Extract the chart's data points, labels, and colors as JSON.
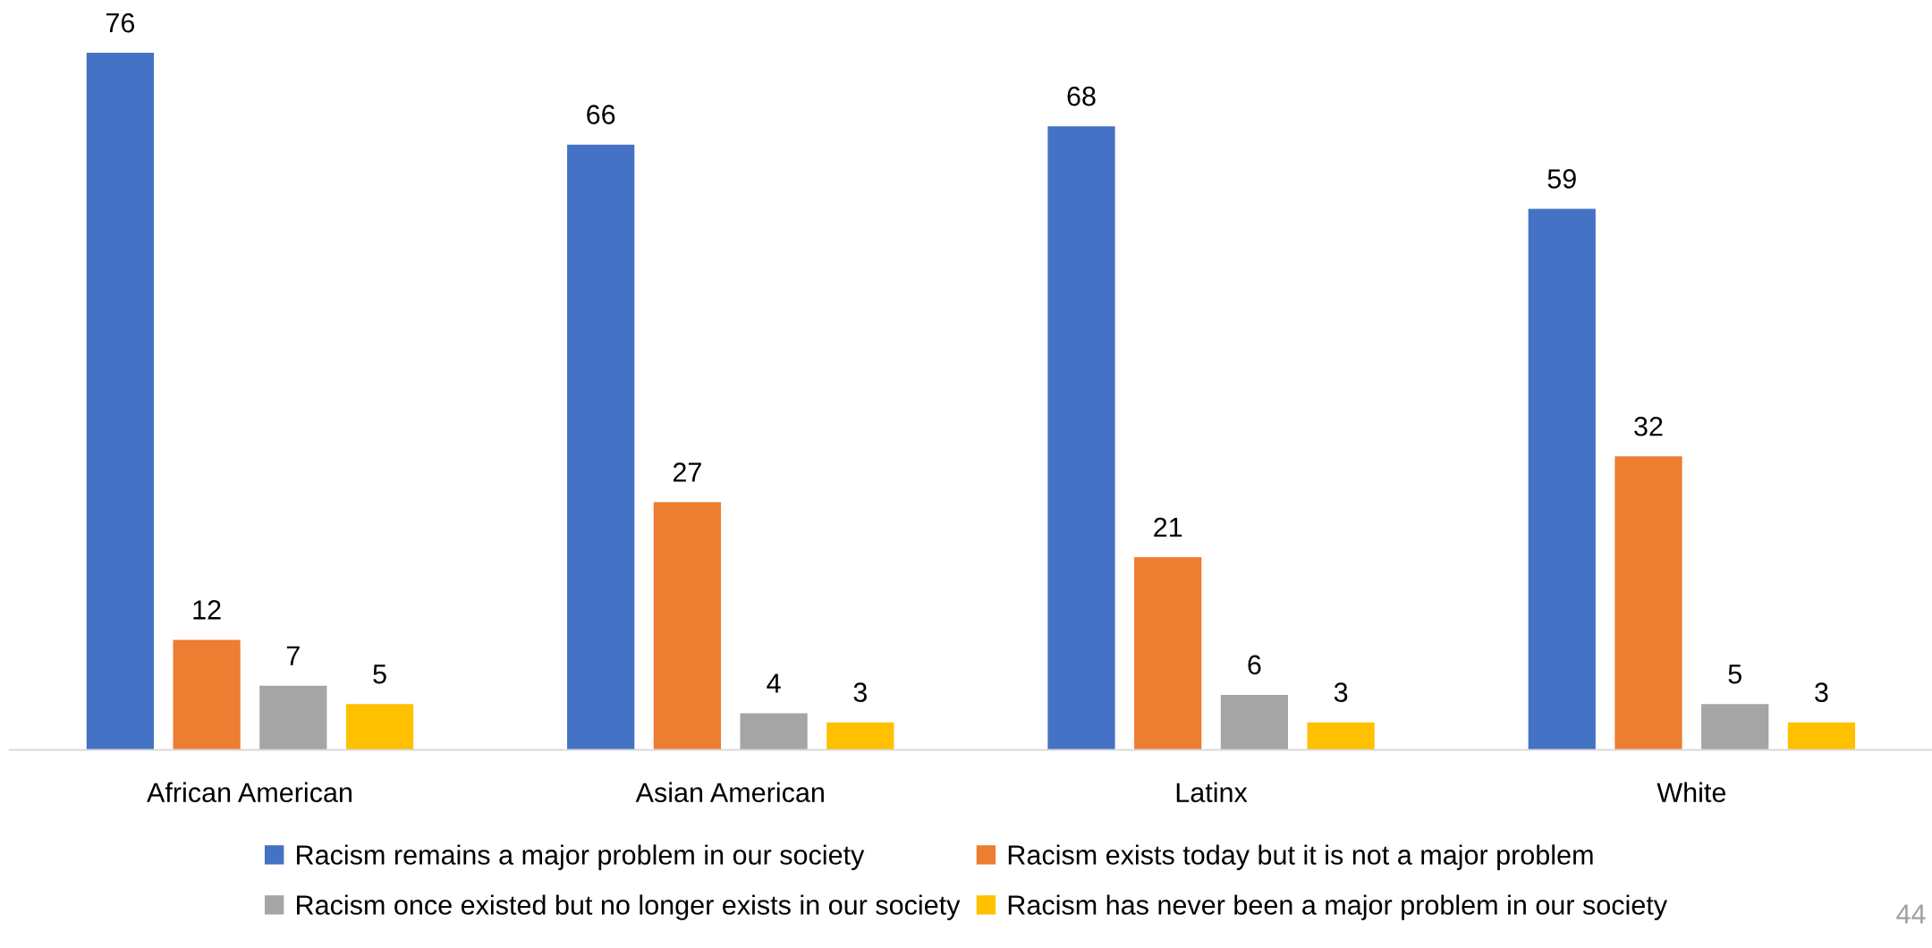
{
  "chart_data": {
    "type": "bar",
    "categories": [
      "African American",
      "Asian American",
      "Latinx",
      "White"
    ],
    "series": [
      {
        "name": "Racism remains a major problem in our society",
        "color": "#4472c4",
        "values": [
          76,
          66,
          68,
          59
        ]
      },
      {
        "name": "Racism exists today but it is not a major problem",
        "color": "#ed7d31",
        "values": [
          12,
          27,
          21,
          32
        ]
      },
      {
        "name": "Racism once existed but no longer exists in our society",
        "color": "#a5a5a5",
        "values": [
          7,
          4,
          6,
          5
        ]
      },
      {
        "name": "Racism has never been a major problem in our society",
        "color": "#ffc000",
        "values": [
          5,
          3,
          3,
          3
        ]
      }
    ],
    "tick_labels": "x",
    "data_labels": true,
    "grid": false,
    "legend": "bottom",
    "annotations": [
      "44"
    ]
  }
}
